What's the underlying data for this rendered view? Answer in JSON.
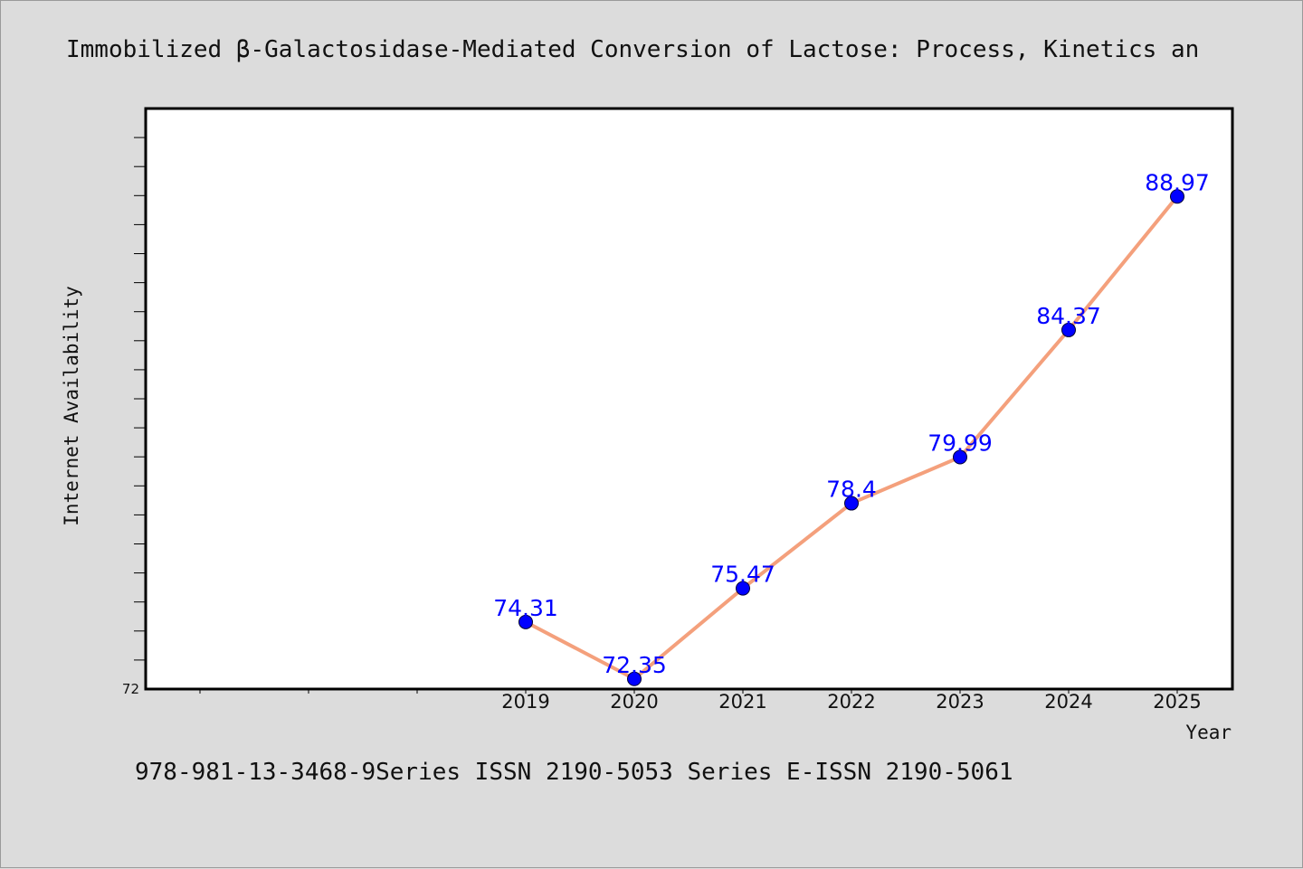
{
  "colors": {
    "background": "#dcdcdc",
    "plot_background": "#ffffff",
    "line": "#f4a07c",
    "marker": "#0000ff",
    "data_label": "#0000ff"
  },
  "header": {
    "title": "Immobilized β-Galactosidase-Mediated Conversion of Lactose: Process, Kinetics an"
  },
  "footer": {
    "text": "978-981-13-3468-9Series ISSN 2190-5053 Series E-ISSN 2190-5061"
  },
  "chart_data": {
    "type": "line",
    "title": "Immobilized β-Galactosidase-Mediated Conversion of Lactose: Process, Kinetics an",
    "xlabel": "Year",
    "ylabel": "Internet Availability",
    "categories": [
      "2019",
      "2020",
      "2021",
      "2022",
      "2023",
      "2024",
      "2025"
    ],
    "series": [
      {
        "values": [
          74.31,
          72.35,
          75.47,
          78.4,
          79.99,
          84.37,
          88.97
        ],
        "labels": [
          "74.31",
          "72.35",
          "75.47",
          "78.4",
          "79.99",
          "84.37",
          "88.97"
        ]
      }
    ],
    "ylim": [
      72,
      92
    ],
    "y_tick_labels": [
      "72"
    ],
    "grid": false,
    "legend": "none"
  }
}
